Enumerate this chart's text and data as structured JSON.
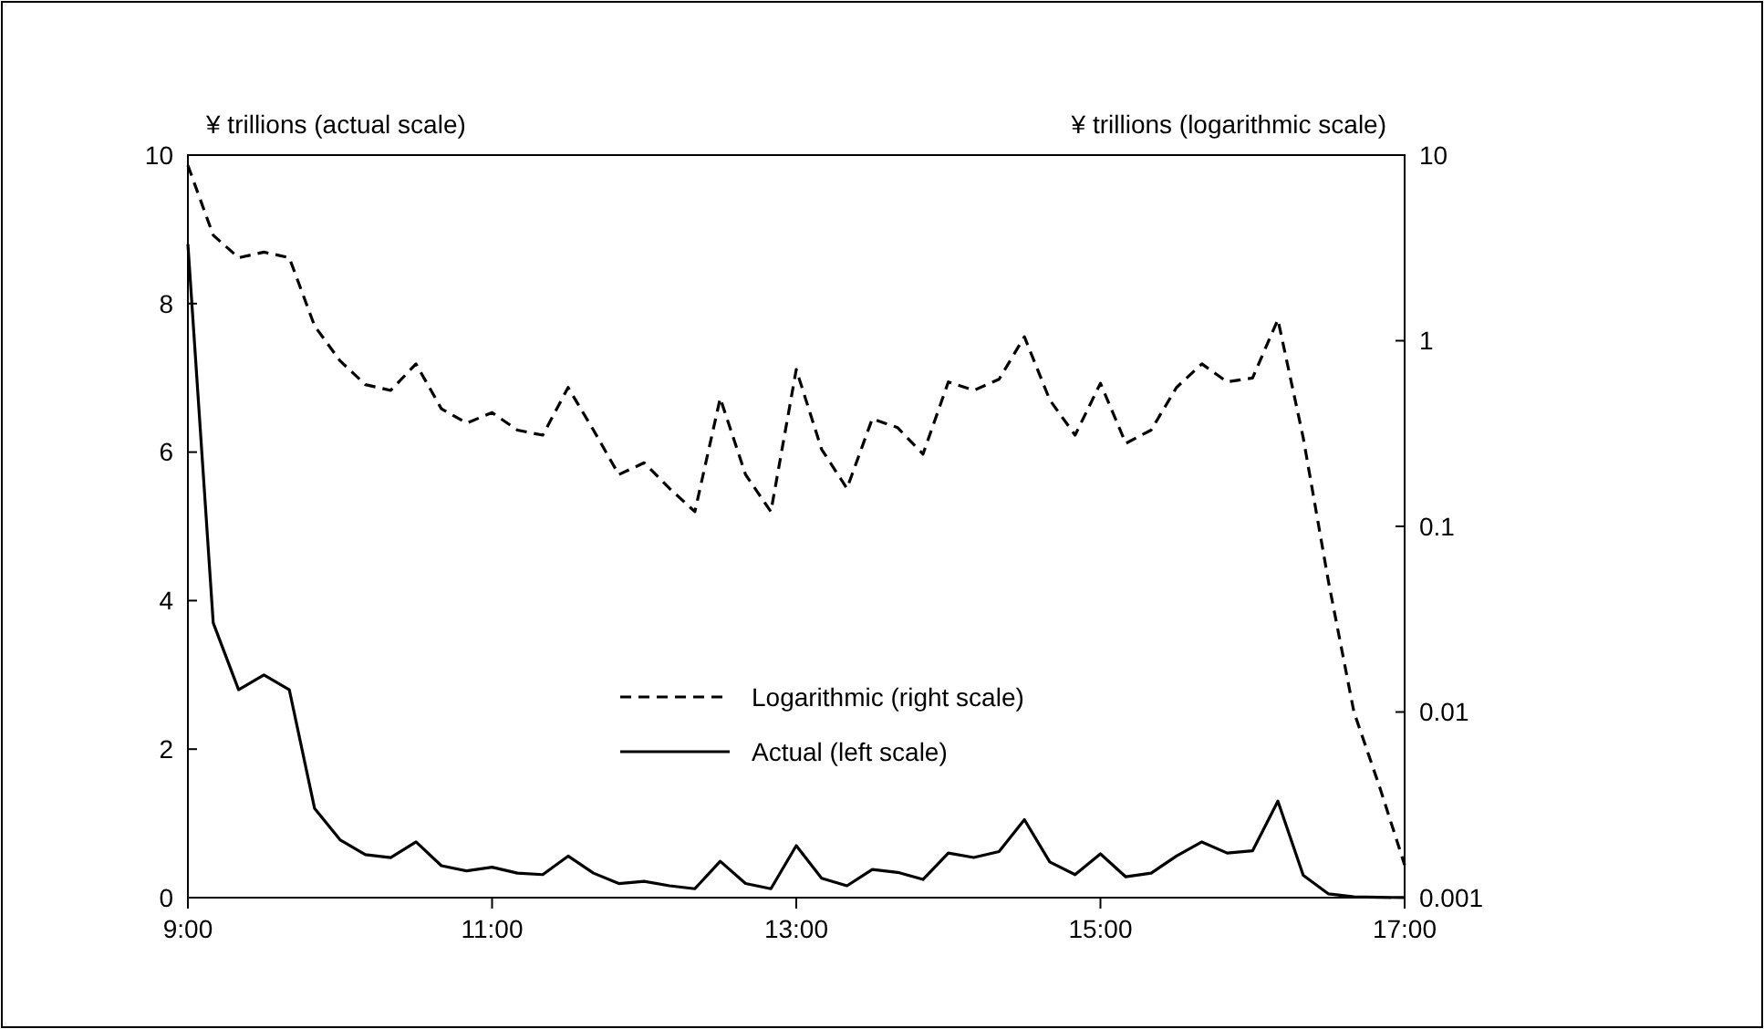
{
  "chart_data": {
    "type": "line",
    "ylabel": "¥ trillions (actual scale)",
    "y2label": "¥ trillions (logarithmic scale)",
    "x": [
      9,
      9.1667,
      9.3333,
      9.5,
      9.6667,
      9.8333,
      10,
      10.1667,
      10.3333,
      10.5,
      10.6667,
      10.8333,
      11,
      11.1667,
      11.3333,
      11.5,
      11.6667,
      11.8333,
      12,
      12.1667,
      12.3333,
      12.5,
      12.6667,
      12.8333,
      13,
      13.1667,
      13.3333,
      13.5,
      13.6667,
      13.8333,
      14,
      14.1667,
      14.3333,
      14.5,
      14.6667,
      14.8333,
      15,
      15.1667,
      15.3333,
      15.5,
      15.6667,
      15.8333,
      16,
      16.1667,
      16.3333,
      16.5,
      16.6667,
      16.8333,
      17
    ],
    "series": [
      {
        "name": "Logarithmic (right scale)",
        "color": "#000000",
        "axis": "y2",
        "line_style": "dashed",
        "values": [
          8.8,
          3.7,
          2.8,
          3.0,
          2.8,
          1.2,
          0.78,
          0.58,
          0.54,
          0.75,
          0.43,
          0.36,
          0.41,
          0.33,
          0.31,
          0.56,
          0.33,
          0.19,
          0.22,
          0.16,
          0.12,
          0.49,
          0.19,
          0.12,
          0.7,
          0.26,
          0.16,
          0.38,
          0.34,
          0.245,
          0.6,
          0.54,
          0.62,
          1.05,
          0.48,
          0.31,
          0.59,
          0.28,
          0.33,
          0.56,
          0.75,
          0.6,
          0.63,
          1.3,
          0.3,
          0.05,
          0.01,
          0.004,
          0.0015
        ]
      },
      {
        "name": "Actual (left scale)",
        "color": "#000000",
        "line_style": "solid",
        "values": [
          8.8,
          3.7,
          2.8,
          3.0,
          2.8,
          1.2,
          0.78,
          0.58,
          0.54,
          0.75,
          0.43,
          0.36,
          0.41,
          0.33,
          0.31,
          0.56,
          0.33,
          0.19,
          0.22,
          0.16,
          0.12,
          0.49,
          0.19,
          0.12,
          0.7,
          0.26,
          0.16,
          0.38,
          0.34,
          0.245,
          0.6,
          0.54,
          0.62,
          1.05,
          0.48,
          0.31,
          0.59,
          0.28,
          0.33,
          0.56,
          0.75,
          0.6,
          0.63,
          1.3,
          0.3,
          0.05,
          0.01,
          0.004,
          0.0015
        ]
      }
    ],
    "xlim": [
      9,
      17
    ],
    "xticks": [
      {
        "value": 9,
        "label": "9:00"
      },
      {
        "value": 11,
        "label": "11:00"
      },
      {
        "value": 13,
        "label": "13:00"
      },
      {
        "value": 15,
        "label": "15:00"
      },
      {
        "value": 17,
        "label": "17:00"
      }
    ],
    "ylim": [
      0,
      10
    ],
    "yticks": [
      0,
      2,
      4,
      6,
      8,
      10
    ],
    "y2lim": [
      0.001,
      10
    ],
    "y2ticks": [
      0.001,
      0.01,
      0.1,
      1,
      10
    ],
    "log": "y2",
    "grid": false,
    "legend": "bottom"
  }
}
